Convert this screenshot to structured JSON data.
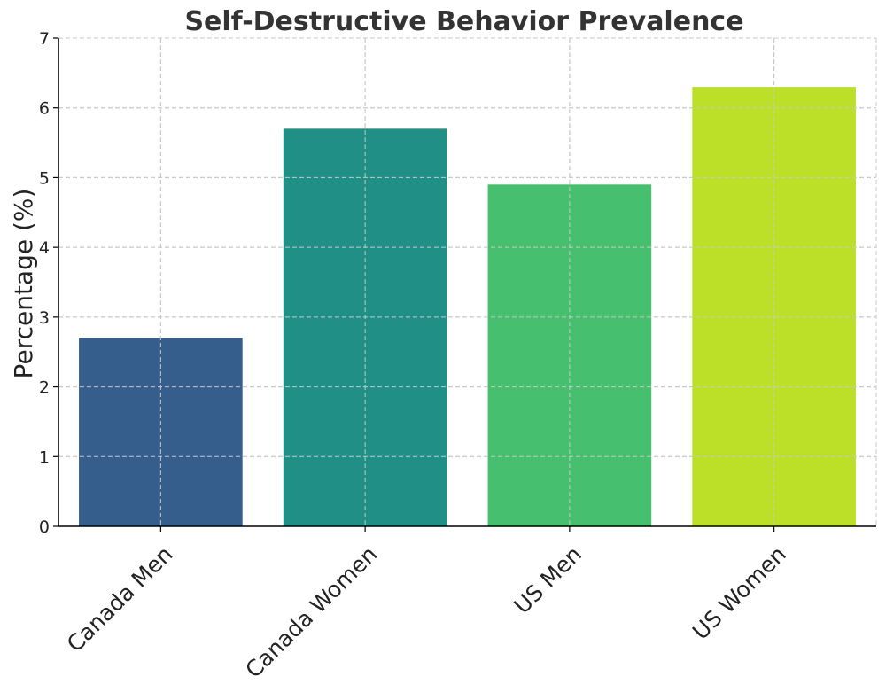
{
  "chart_data": {
    "type": "bar",
    "title": "Self-Destructive Behavior Prevalence",
    "xlabel": "",
    "ylabel": "Percentage (%)",
    "categories": [
      "Canada Men",
      "Canada Women",
      "US Men",
      "US Women"
    ],
    "values": [
      2.7,
      5.7,
      4.9,
      6.3
    ],
    "colors": [
      "#365e8c",
      "#208f86",
      "#46bf6e",
      "#bce028"
    ],
    "ylim": [
      0,
      7
    ],
    "yticks": [
      "0",
      "1",
      "2",
      "3",
      "4",
      "5",
      "6",
      "7"
    ],
    "grid": true,
    "legend": "none"
  }
}
